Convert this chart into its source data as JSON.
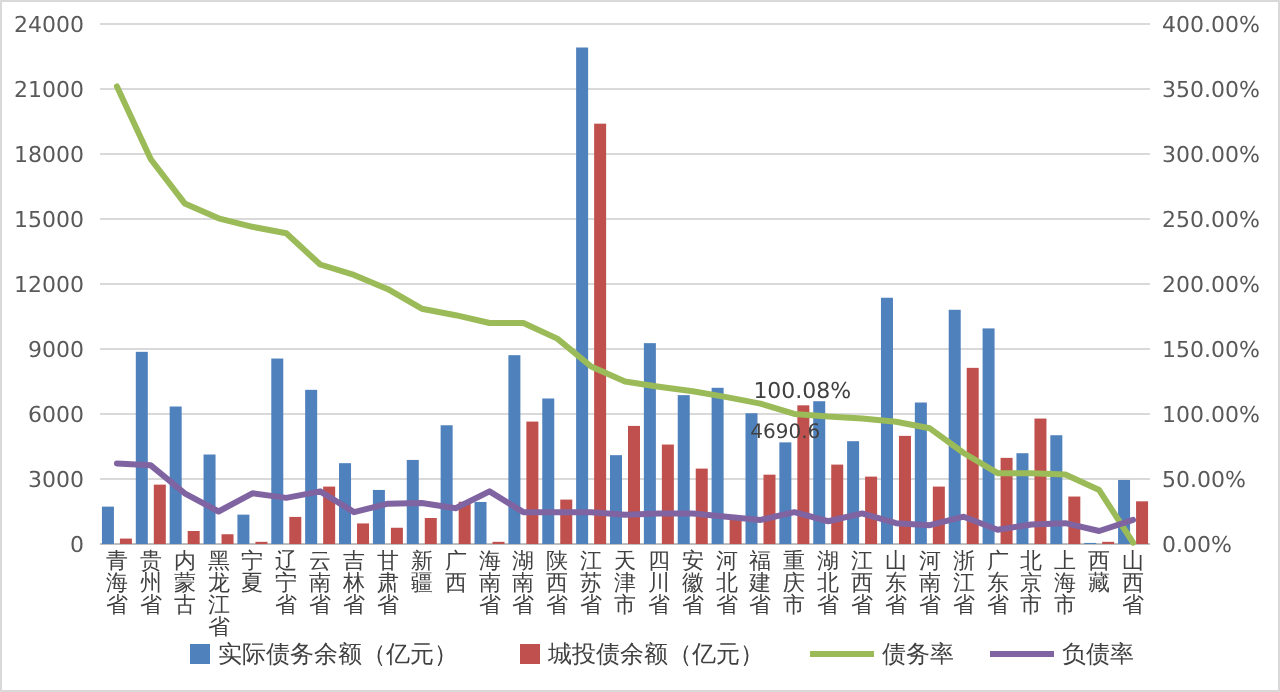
{
  "chart_data": {
    "type": "bar",
    "categories": [
      "青海省",
      "贵州省",
      "内蒙古",
      "黑龙江省",
      "宁夏",
      "辽宁省",
      "云南省",
      "吉林省",
      "甘肃省",
      "新疆",
      "广西",
      "海南省",
      "湖南省",
      "陕西省",
      "江苏省",
      "天津市",
      "四川省",
      "安徽省",
      "河北省",
      "福建省",
      "重庆市",
      "湖北省",
      "江西省",
      "山东省",
      "河南省",
      "浙江省",
      "广东省",
      "北京市",
      "上海市",
      "西藏",
      "山西省"
    ],
    "series": [
      {
        "name": "实际债务余额（亿元）",
        "color": "#4f81bd",
        "values": [
          1725,
          8870,
          6345,
          4130,
          1355,
          8560,
          7115,
          3730,
          2495,
          3880,
          5480,
          1940,
          8715,
          6715,
          22915,
          4100,
          9270,
          6870,
          7210,
          6035,
          4690.6,
          6590,
          4745,
          11365,
          6530,
          10810,
          9950,
          4190,
          5020,
          50,
          2955
        ],
        "value_labels": [
          null,
          null,
          null,
          null,
          null,
          null,
          null,
          null,
          null,
          null,
          null,
          null,
          null,
          null,
          null,
          null,
          null,
          null,
          null,
          null,
          "4690.6",
          null,
          null,
          null,
          null,
          null,
          null,
          null,
          null,
          null,
          null
        ]
      },
      {
        "name": "城投债余额（亿元）",
        "color": "#c0504d",
        "values": [
          250,
          2740,
          600,
          450,
          100,
          1250,
          2650,
          950,
          750,
          1200,
          1950,
          100,
          5650,
          2050,
          19400,
          5450,
          4590,
          3480,
          1170,
          3200,
          6400,
          3665,
          3110,
          4990,
          2650,
          8130,
          3975,
          5790,
          2190,
          100,
          1970
        ]
      },
      {
        "name": "债务率",
        "type": "line",
        "axis": "y2",
        "color": "#9bbb59",
        "values": [
          352,
          296,
          262,
          250.5,
          244,
          239,
          215,
          207,
          196,
          181,
          176,
          170,
          170,
          158,
          136.5,
          125,
          121,
          117.5,
          113,
          108,
          100.08,
          98,
          96.5,
          94,
          89,
          70,
          54.5,
          54.5,
          53.5,
          41.5,
          1
        ],
        "value_labels": [
          null,
          null,
          null,
          null,
          null,
          null,
          null,
          null,
          null,
          null,
          null,
          null,
          null,
          null,
          null,
          null,
          null,
          null,
          null,
          null,
          "100.08%",
          null,
          null,
          null,
          null,
          null,
          null,
          null,
          null,
          null,
          null
        ]
      },
      {
        "name": "负债率",
        "type": "line",
        "axis": "y2",
        "color": "#8064a2",
        "values": [
          62,
          60.5,
          39,
          25,
          39,
          35.5,
          40.5,
          24.5,
          31,
          31.5,
          27.5,
          40.5,
          24.5,
          24.5,
          24.5,
          22.5,
          23.5,
          23.5,
          21,
          18.5,
          24.5,
          17.5,
          23.5,
          16,
          14.5,
          21,
          11,
          15,
          16,
          10,
          18.5
        ]
      }
    ],
    "ylim": [
      0,
      24000
    ],
    "yticks": [
      0,
      3000,
      6000,
      9000,
      12000,
      15000,
      18000,
      21000,
      24000
    ],
    "y2lim": [
      0,
      400
    ],
    "y2ticks": [
      {
        "value": 0,
        "label": "0.00%"
      },
      {
        "value": 50,
        "label": "50.00%"
      },
      {
        "value": 100,
        "label": "100.00%"
      },
      {
        "value": 150,
        "label": "150.00%"
      },
      {
        "value": 200,
        "label": "200.00%"
      },
      {
        "value": 250,
        "label": "250.00%"
      },
      {
        "value": 300,
        "label": "300.00%"
      },
      {
        "value": 350,
        "label": "350.00%"
      },
      {
        "value": 400,
        "label": "400.00%"
      }
    ],
    "grid": "y",
    "legend": "bottom",
    "marker": "none",
    "line_style": "solid"
  }
}
